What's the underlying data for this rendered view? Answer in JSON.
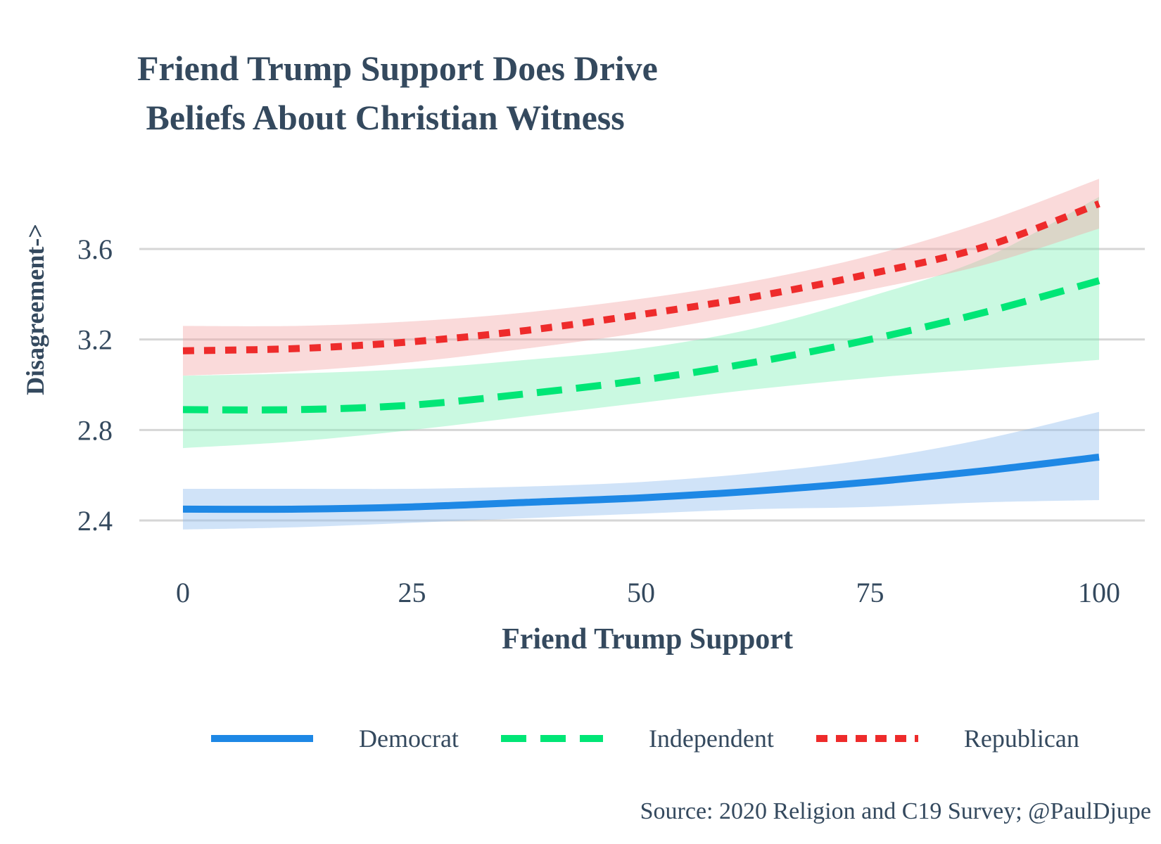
{
  "chart_data": {
    "type": "line",
    "title": "Friend Trump Support Does Drive\n Beliefs About Christian Witness",
    "xlabel": "Friend Trump Support",
    "ylabel": "Disagreement->",
    "xlim": [
      0,
      100
    ],
    "ylim": [
      2.4,
      3.6
    ],
    "x_ticks": [
      0,
      25,
      50,
      75,
      100
    ],
    "y_ticks": [
      2.4,
      2.8,
      3.2,
      3.6
    ],
    "x_tick_labels": [
      "0",
      "25",
      "50",
      "75",
      "100"
    ],
    "y_tick_labels": [
      "2.4",
      "2.8",
      "3.2",
      "3.6"
    ],
    "grid": "horizontal",
    "legend_position": "bottom",
    "x": [
      0,
      12.5,
      25,
      37.5,
      50,
      62.5,
      75,
      87.5,
      100
    ],
    "series": [
      {
        "name": "Democrat",
        "color": "#1e88e5",
        "band_color": "#90bdef",
        "line_style": "solid",
        "values": [
          2.45,
          2.45,
          2.46,
          2.48,
          2.5,
          2.53,
          2.57,
          2.62,
          2.68
        ],
        "lower": [
          2.36,
          2.37,
          2.39,
          2.41,
          2.43,
          2.45,
          2.46,
          2.48,
          2.49
        ],
        "upper": [
          2.54,
          2.54,
          2.54,
          2.55,
          2.57,
          2.61,
          2.67,
          2.76,
          2.88
        ]
      },
      {
        "name": "Independent",
        "color": "#00e676",
        "band_color": "#80f0b8",
        "line_style": "dashed",
        "values": [
          2.89,
          2.89,
          2.91,
          2.96,
          3.02,
          3.1,
          3.2,
          3.32,
          3.46
        ],
        "lower": [
          2.72,
          2.75,
          2.8,
          2.86,
          2.92,
          2.98,
          3.03,
          3.07,
          3.11
        ],
        "upper": [
          3.04,
          3.05,
          3.07,
          3.11,
          3.16,
          3.25,
          3.39,
          3.56,
          3.83
        ]
      },
      {
        "name": "Republican",
        "color": "#ee2b2b",
        "band_color": "#f4a8a8",
        "line_style": "dotted",
        "values": [
          3.15,
          3.16,
          3.19,
          3.24,
          3.31,
          3.39,
          3.49,
          3.61,
          3.8
        ],
        "lower": [
          3.04,
          3.06,
          3.1,
          3.16,
          3.23,
          3.32,
          3.42,
          3.53,
          3.69
        ],
        "upper": [
          3.26,
          3.26,
          3.28,
          3.32,
          3.38,
          3.46,
          3.57,
          3.72,
          3.91
        ]
      }
    ],
    "source": "Source: 2020 Religion and C19 Survey; @PaulDjupe"
  }
}
